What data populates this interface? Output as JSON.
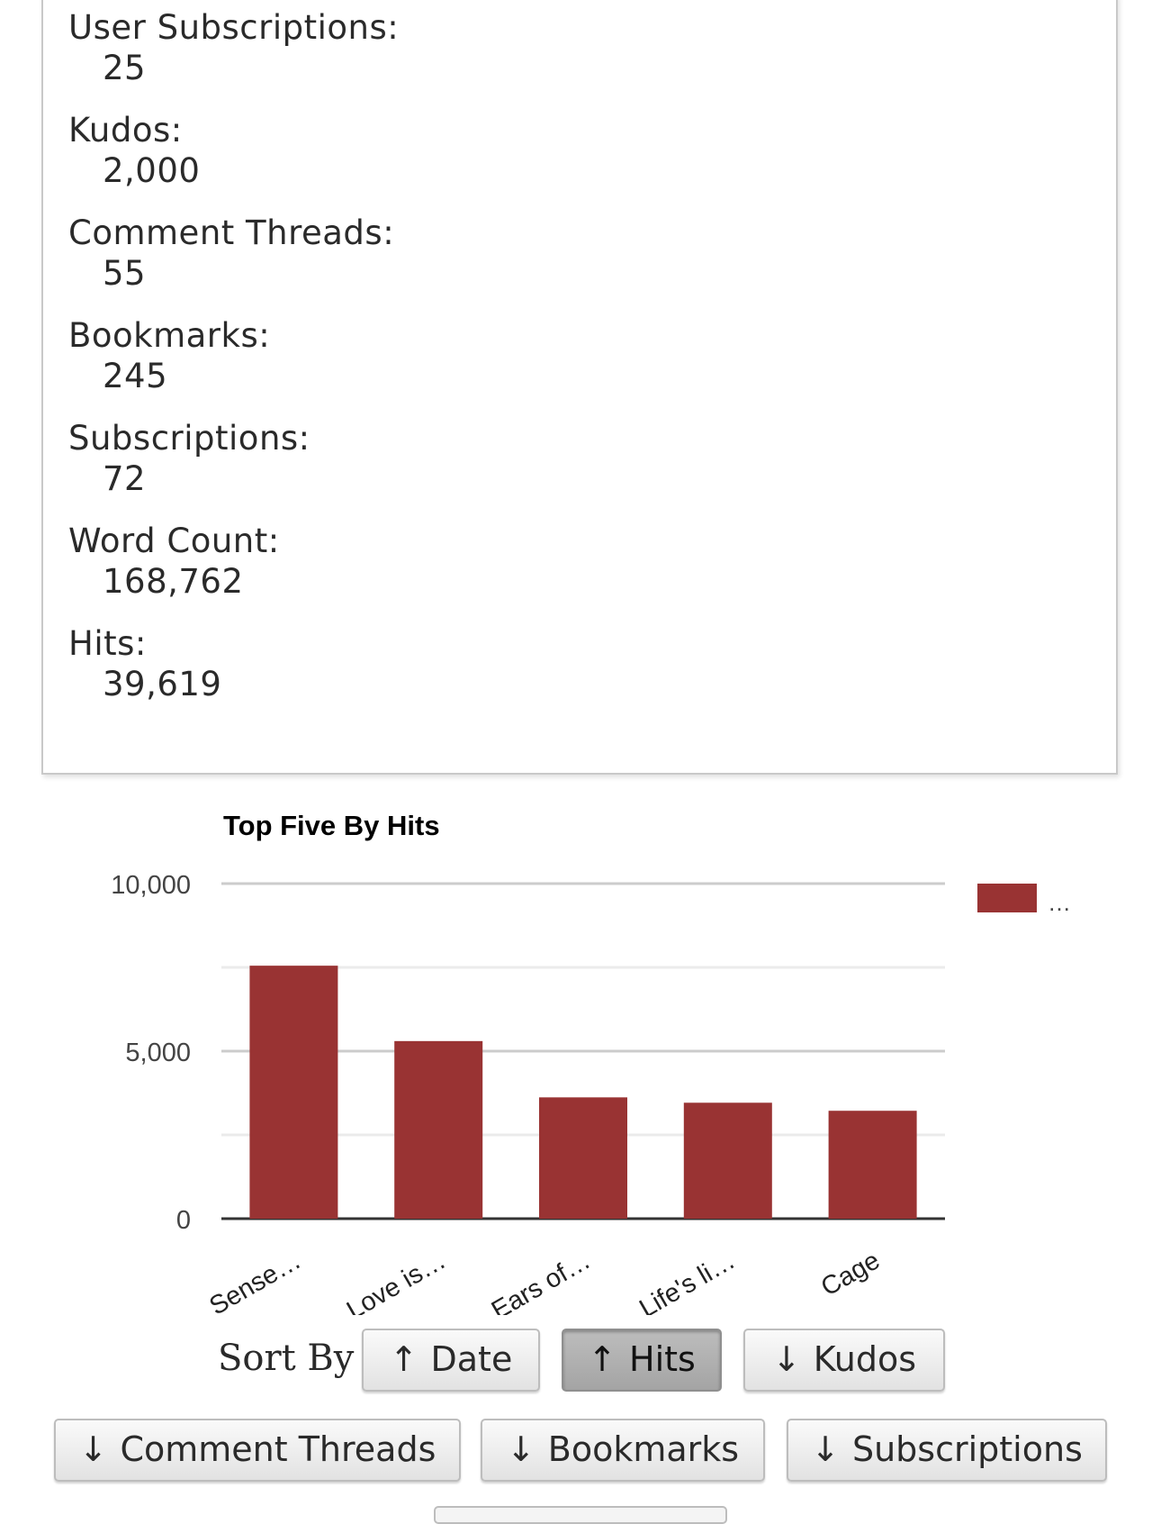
{
  "stats": [
    {
      "label": "User Subscriptions:",
      "value": "25"
    },
    {
      "label": "Kudos:",
      "value": "2,000"
    },
    {
      "label": "Comment Threads:",
      "value": "55"
    },
    {
      "label": "Bookmarks:",
      "value": "245"
    },
    {
      "label": "Subscriptions:",
      "value": "72"
    },
    {
      "label": "Word Count:",
      "value": "168,762"
    },
    {
      "label": "Hits:",
      "value": "39,619"
    }
  ],
  "chart_data": {
    "type": "bar",
    "title": "Top Five By Hits",
    "categories": [
      "Sense…",
      "Love is…",
      "Ears of…",
      "Life's li…",
      "Cage"
    ],
    "values": [
      7550,
      5300,
      3620,
      3460,
      3220
    ],
    "ylim": [
      0,
      10000
    ],
    "y_ticks": [
      "0",
      "5,000",
      "10,000"
    ],
    "legend": {
      "label": "…",
      "position": "top-right"
    },
    "bar_color": "#993333",
    "grid": true
  },
  "sort": {
    "label": "Sort By",
    "buttons": [
      {
        "arrow": "↑",
        "label": "Date",
        "active": false
      },
      {
        "arrow": "↑",
        "label": "Hits",
        "active": true
      },
      {
        "arrow": "↓",
        "label": "Kudos",
        "active": false
      },
      {
        "arrow": "↓",
        "label": "Comment Threads",
        "active": false
      },
      {
        "arrow": "↓",
        "label": "Bookmarks",
        "active": false
      },
      {
        "arrow": "↓",
        "label": "Subscriptions",
        "active": false
      }
    ]
  }
}
